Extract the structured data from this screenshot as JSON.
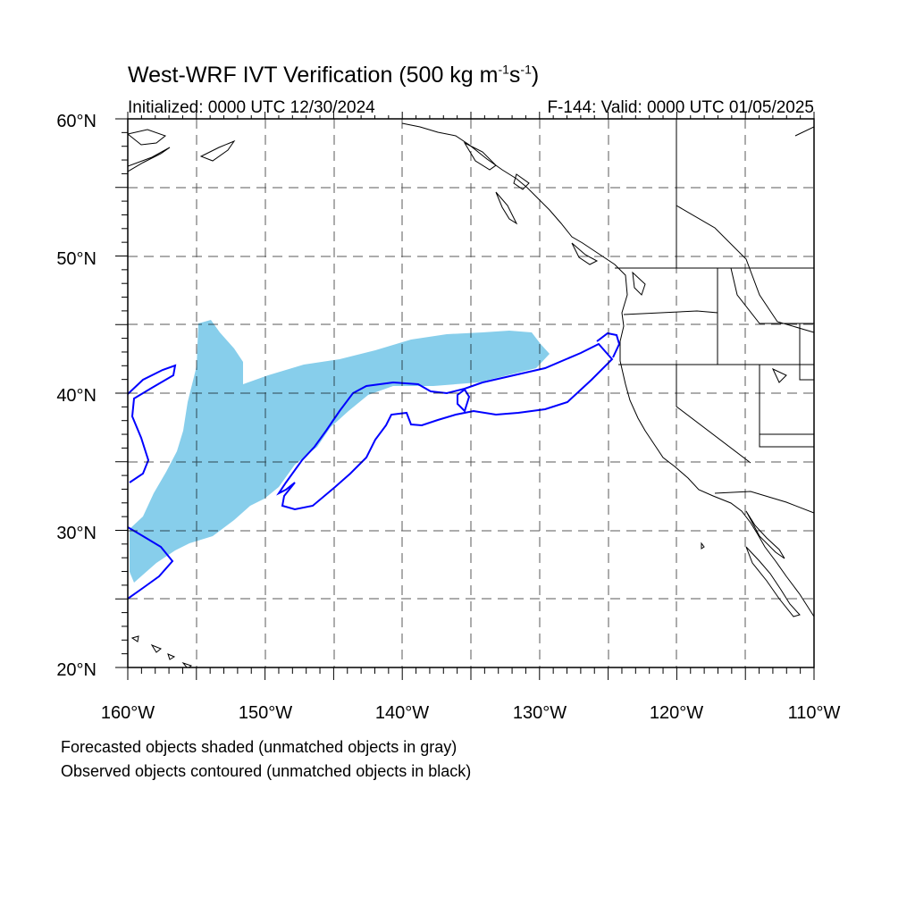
{
  "title": {
    "main": "West-WRF IVT Verification (500 kg m",
    "sup1": "-1",
    "mid": "s",
    "sup2": "-1",
    "end": ")"
  },
  "initialized": "Initialized: 0000 UTC 12/30/2024",
  "valid": "F-144: Valid: 0000 UTC 01/05/2025",
  "lat_labels": [
    "60°N",
    "50°N",
    "40°N",
    "30°N",
    "20°N"
  ],
  "lon_labels": [
    "160°W",
    "150°W",
    "140°W",
    "130°W",
    "120°W",
    "110°W"
  ],
  "caption": {
    "forecast": "Forecasted objects shaded (unmatched objects in gray)",
    "observed": "Observed objects contoured (unmatched objects in black)"
  },
  "colors": {
    "forecast_fill": "#87ceeb",
    "observed_contour": "#0000ff",
    "coastline": "#000000",
    "grid": "#000000"
  },
  "map_extent": {
    "lon": [
      -160,
      -110
    ],
    "lat": [
      20,
      60
    ]
  }
}
